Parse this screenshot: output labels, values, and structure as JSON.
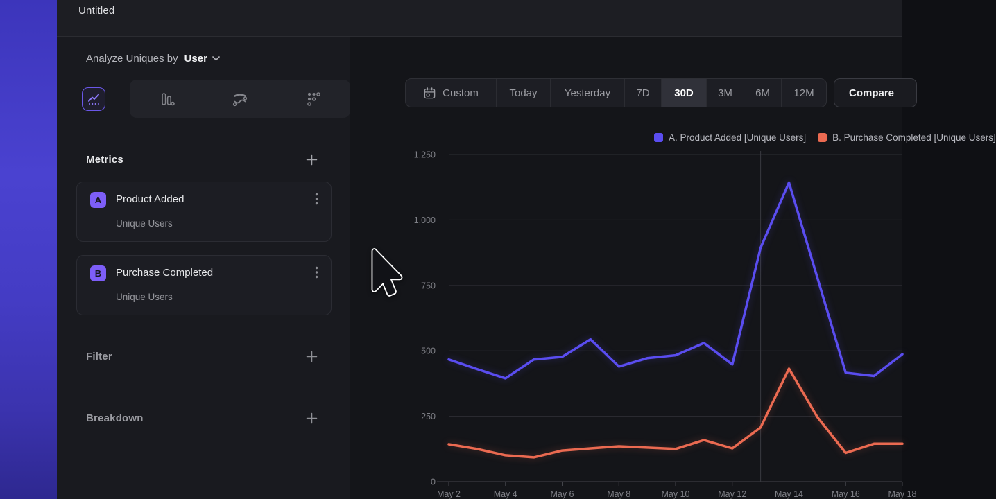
{
  "window": {
    "title": "Untitled"
  },
  "sidebar": {
    "analyze_label": "Analyze Uniques by",
    "analyze_value": "User",
    "chart_type_tabs": [
      {
        "icon": "line-chart-icon",
        "selected": true
      },
      {
        "icon": "bar-chart-icon",
        "selected": false
      },
      {
        "icon": "flow-chart-icon",
        "selected": false
      },
      {
        "icon": "funnel-dots-icon",
        "selected": false
      }
    ],
    "metrics": {
      "title": "Metrics",
      "add_icon": "plus-icon",
      "items": [
        {
          "badge": "A",
          "name": "Product Added",
          "subtitle": "Unique Users",
          "menu_icon": "kebab-icon"
        },
        {
          "badge": "B",
          "name": "Purchase Completed",
          "subtitle": "Unique Users",
          "menu_icon": "kebab-icon"
        }
      ]
    },
    "sections": [
      {
        "title": "Filter",
        "add_icon": "plus-icon"
      },
      {
        "title": "Breakdown",
        "add_icon": "plus-icon"
      }
    ]
  },
  "toolbar": {
    "ranges": [
      "Custom",
      "Today",
      "Yesterday",
      "7D",
      "30D",
      "3M",
      "6M",
      "12M"
    ],
    "active_range": "30D",
    "custom_icon": "calendar-icon",
    "compare_label": "Compare"
  },
  "chart_data": {
    "type": "line",
    "title": "",
    "x": [
      "May 2",
      "May 3",
      "May 4",
      "May 5",
      "May 6",
      "May 7",
      "May 8",
      "May 9",
      "May 10",
      "May 11",
      "May 12",
      "May 13",
      "May 14",
      "May 15",
      "May 16",
      "May 17",
      "May 18"
    ],
    "x_tick_labels": [
      "May 2",
      "May 4",
      "May 6",
      "May 8",
      "May 10",
      "May 12",
      "May 14",
      "May 16",
      "May 18"
    ],
    "series": [
      {
        "name": "A. Product Added [Unique Users]",
        "color": "#5a4df0",
        "values": [
          467,
          430,
          395,
          467,
          477,
          544,
          440,
          472,
          483,
          530,
          448,
          894,
          1143,
          780,
          416,
          404,
          487
        ]
      },
      {
        "name": "B. Purchase Completed [Unique Users]",
        "color": "#eb6a51",
        "values": [
          143,
          125,
          101,
          93,
          119,
          127,
          135,
          130,
          125,
          159,
          127,
          207,
          432,
          247,
          110,
          145,
          145
        ]
      }
    ],
    "ylim": [
      0,
      1250
    ],
    "yticks": [
      0,
      250,
      500,
      750,
      1000,
      1250
    ],
    "ytick_labels": [
      "0",
      "250",
      "500",
      "750",
      "1,000",
      "1,250"
    ],
    "grid": true,
    "legend_position": "top-right",
    "vertical_marker_day": "May 13"
  },
  "colors": {
    "accent_purple": "#7d5ef7",
    "series_a": "#5a4df0",
    "series_b": "#eb6a51",
    "active_pill": "#303139",
    "gridline": "#2d2e34",
    "axis_text": "#7f8087"
  }
}
